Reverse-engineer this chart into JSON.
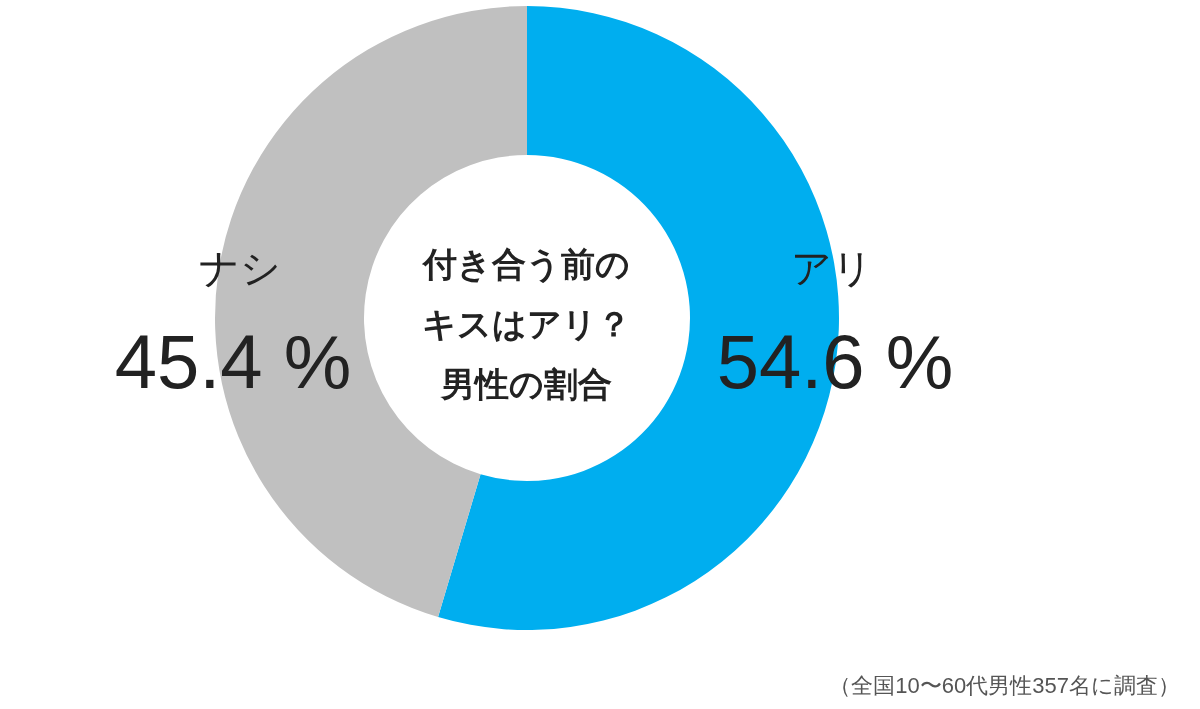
{
  "chart_data": {
    "type": "donut",
    "title": "付き合う前のキスはアリ？男性の割合",
    "categories": [
      "アリ",
      "ナシ"
    ],
    "values": [
      54.6,
      45.4
    ],
    "colors": [
      "#00aeef",
      "#c0c0c0"
    ],
    "value_labels": [
      "54.6 %",
      "45.4 %"
    ],
    "annotations": [
      "（全国10〜60代男性357名に調査）"
    ]
  }
}
